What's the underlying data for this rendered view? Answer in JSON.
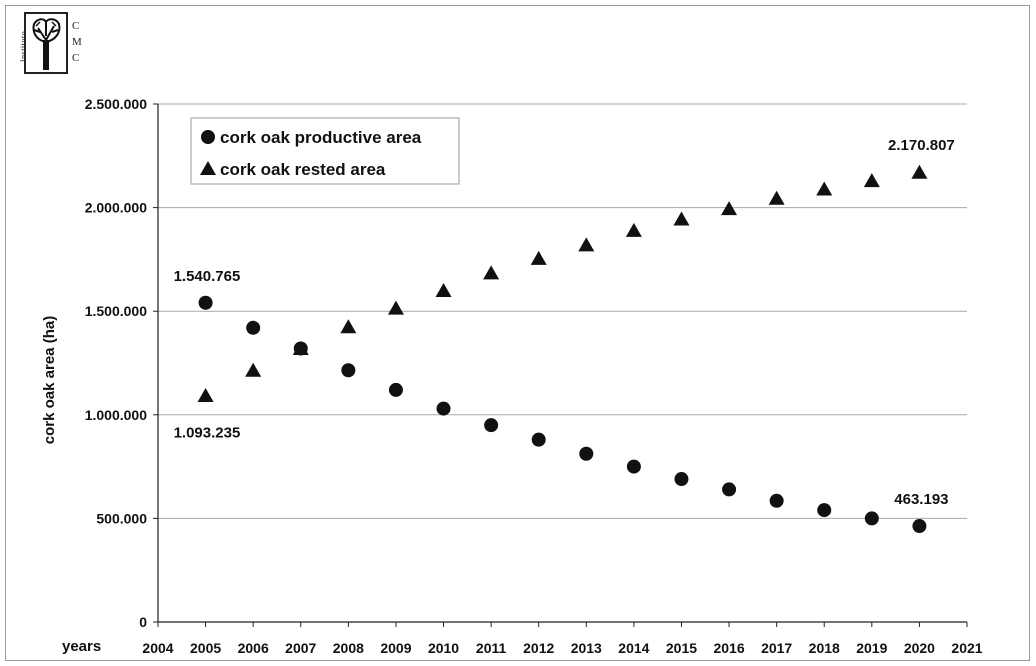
{
  "logo": {
    "vertical_text": "Instituto",
    "letters": [
      "C",
      "M",
      "C"
    ]
  },
  "chart_data": {
    "type": "scatter",
    "title": "",
    "xlabel": "years",
    "ylabel": "cork oak area (ha)",
    "xlim": [
      2004,
      2021
    ],
    "ylim": [
      0,
      2500000
    ],
    "x_ticks": [
      "2004",
      "2005",
      "2006",
      "2007",
      "2008",
      "2009",
      "2010",
      "2011",
      "2012",
      "2013",
      "2014",
      "2015",
      "2016",
      "2017",
      "2018",
      "2019",
      "2020",
      "2021"
    ],
    "y_ticks": [
      {
        "value": 0,
        "label": "0"
      },
      {
        "value": 500000,
        "label": "500.000"
      },
      {
        "value": 1000000,
        "label": "1.000.000"
      },
      {
        "value": 1500000,
        "label": "1.500.000"
      },
      {
        "value": 2000000,
        "label": "2.000.000"
      },
      {
        "value": 2500000,
        "label": "2.500.000"
      }
    ],
    "grid": "horizontal",
    "legend_position": "top-left",
    "x": [
      2005,
      2006,
      2007,
      2008,
      2009,
      2010,
      2011,
      2012,
      2013,
      2014,
      2015,
      2016,
      2017,
      2018,
      2019,
      2020
    ],
    "series": [
      {
        "name": "cork oak productive area",
        "marker": "circle",
        "values": [
          1540765,
          1420000,
          1320000,
          1215000,
          1120000,
          1030000,
          950000,
          880000,
          812000,
          750000,
          690000,
          640000,
          585000,
          540000,
          500000,
          463193
        ]
      },
      {
        "name": "cork oak rested area",
        "marker": "triangle",
        "values": [
          1093235,
          1215000,
          1320000,
          1425000,
          1515000,
          1600000,
          1685000,
          1755000,
          1820000,
          1890000,
          1945000,
          1995000,
          2045000,
          2090000,
          2130000,
          2170807
        ]
      }
    ],
    "annotations": [
      {
        "text": "1.540.765",
        "x": 2005,
        "y": 1540765,
        "series": "cork oak productive area",
        "position": "above"
      },
      {
        "text": "1.093.235",
        "x": 2005,
        "y": 1093235,
        "series": "cork oak rested area",
        "position": "below"
      },
      {
        "text": "463.193",
        "x": 2020,
        "y": 463193,
        "series": "cork oak productive area",
        "position": "above"
      },
      {
        "text": "2.170.807",
        "x": 2020,
        "y": 2170807,
        "series": "cork oak rested area",
        "position": "above"
      }
    ],
    "colors": {
      "marker": "#111111",
      "grid": "#a8a8a8",
      "axis": "#222222"
    }
  }
}
